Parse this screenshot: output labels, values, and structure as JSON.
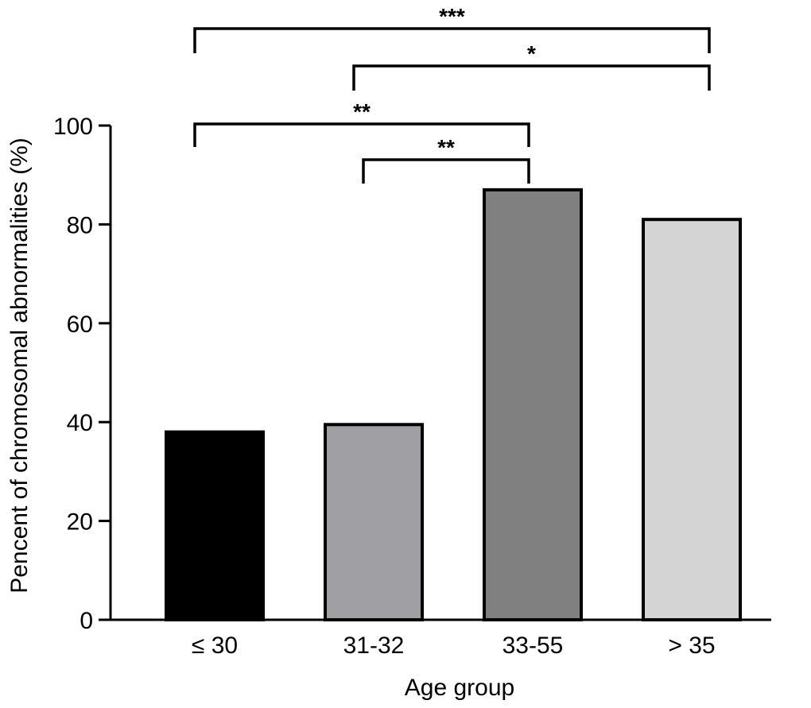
{
  "chart_data": {
    "type": "bar",
    "categories": [
      "≤ 30",
      "31-32",
      "33-55",
      "> 35"
    ],
    "values": [
      38,
      39.5,
      87,
      81
    ],
    "colors": [
      "#000000",
      "#a0a0a4",
      "#808080",
      "#d4d4d4"
    ],
    "xlabel": "Age group",
    "ylabel": "Pencent of chromosomal abnormalities (%)",
    "ylim": [
      0,
      100
    ],
    "yticks": [
      0,
      20,
      40,
      60,
      80,
      100
    ],
    "significance": [
      {
        "from": 0,
        "to": 3,
        "label": "***"
      },
      {
        "from": 1,
        "to": 3,
        "label": "*"
      },
      {
        "from": 0,
        "to": 2,
        "label": "**"
      },
      {
        "from": 1,
        "to": 2,
        "label": "**"
      }
    ]
  }
}
